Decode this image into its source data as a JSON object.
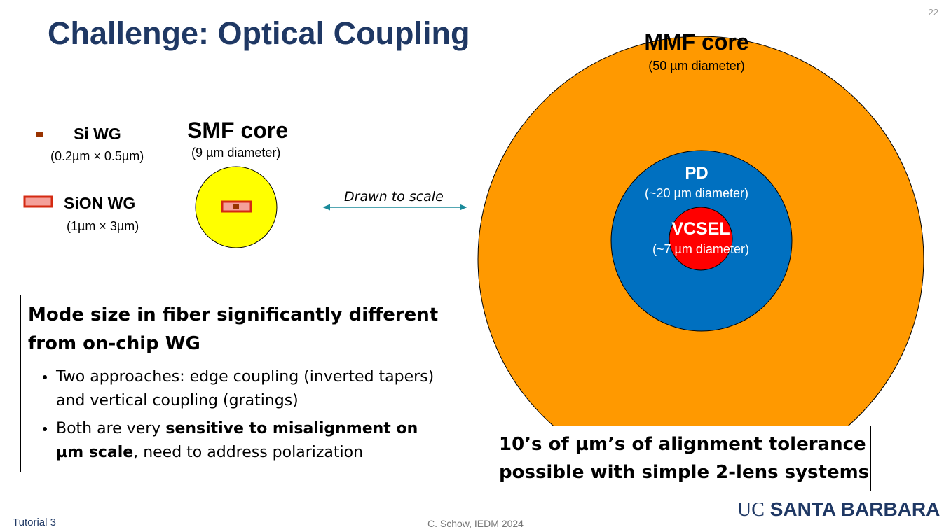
{
  "slide": {
    "title": "Challenge: Optical Coupling",
    "page_number": "22"
  },
  "diagram": {
    "si_wg": {
      "label": "Si WG",
      "dims": "(0.2µm × 0.5µm)"
    },
    "sion_wg": {
      "label": "SiON WG",
      "dims": "(1µm × 3µm)"
    },
    "smf": {
      "label": "SMF core",
      "dims": "(9 µm diameter)"
    },
    "arrow_label": "Drawn to scale",
    "mmf": {
      "label": "MMF core",
      "dims": "(50 µm diameter)"
    },
    "pd": {
      "label": "PD",
      "dims": "(~20 µm diameter)"
    },
    "vcsel": {
      "label": "VCSEL",
      "dims": "(~7 µm diameter)"
    },
    "colors": {
      "mmf": "#ff9900",
      "pd": "#0070c0",
      "vcsel": "#ff0000",
      "smf": "#ffff00",
      "si": "#993300",
      "sion_border": "#d42a12",
      "sion_fill": "#f4a09a",
      "title": "#1f3864"
    }
  },
  "box_left": {
    "heading": "Mode size in fiber significantly different from on-chip WG",
    "bullets": [
      {
        "text": "Two approaches: edge coupling (inverted tapers) and vertical coupling (gratings)"
      },
      {
        "pre": "Both are very ",
        "bold": "sensitive to misalignment on µm scale",
        "post": ", need to address polarization"
      }
    ]
  },
  "box_right": {
    "text": "10’s of µm’s of alignment tolerance possible with simple 2-lens systems"
  },
  "footer": {
    "left": "Tutorial 3",
    "center": "C. Schow, IEDM 2024",
    "logo_uc": "UC",
    "logo_sb": "SANTA BARBARA"
  }
}
